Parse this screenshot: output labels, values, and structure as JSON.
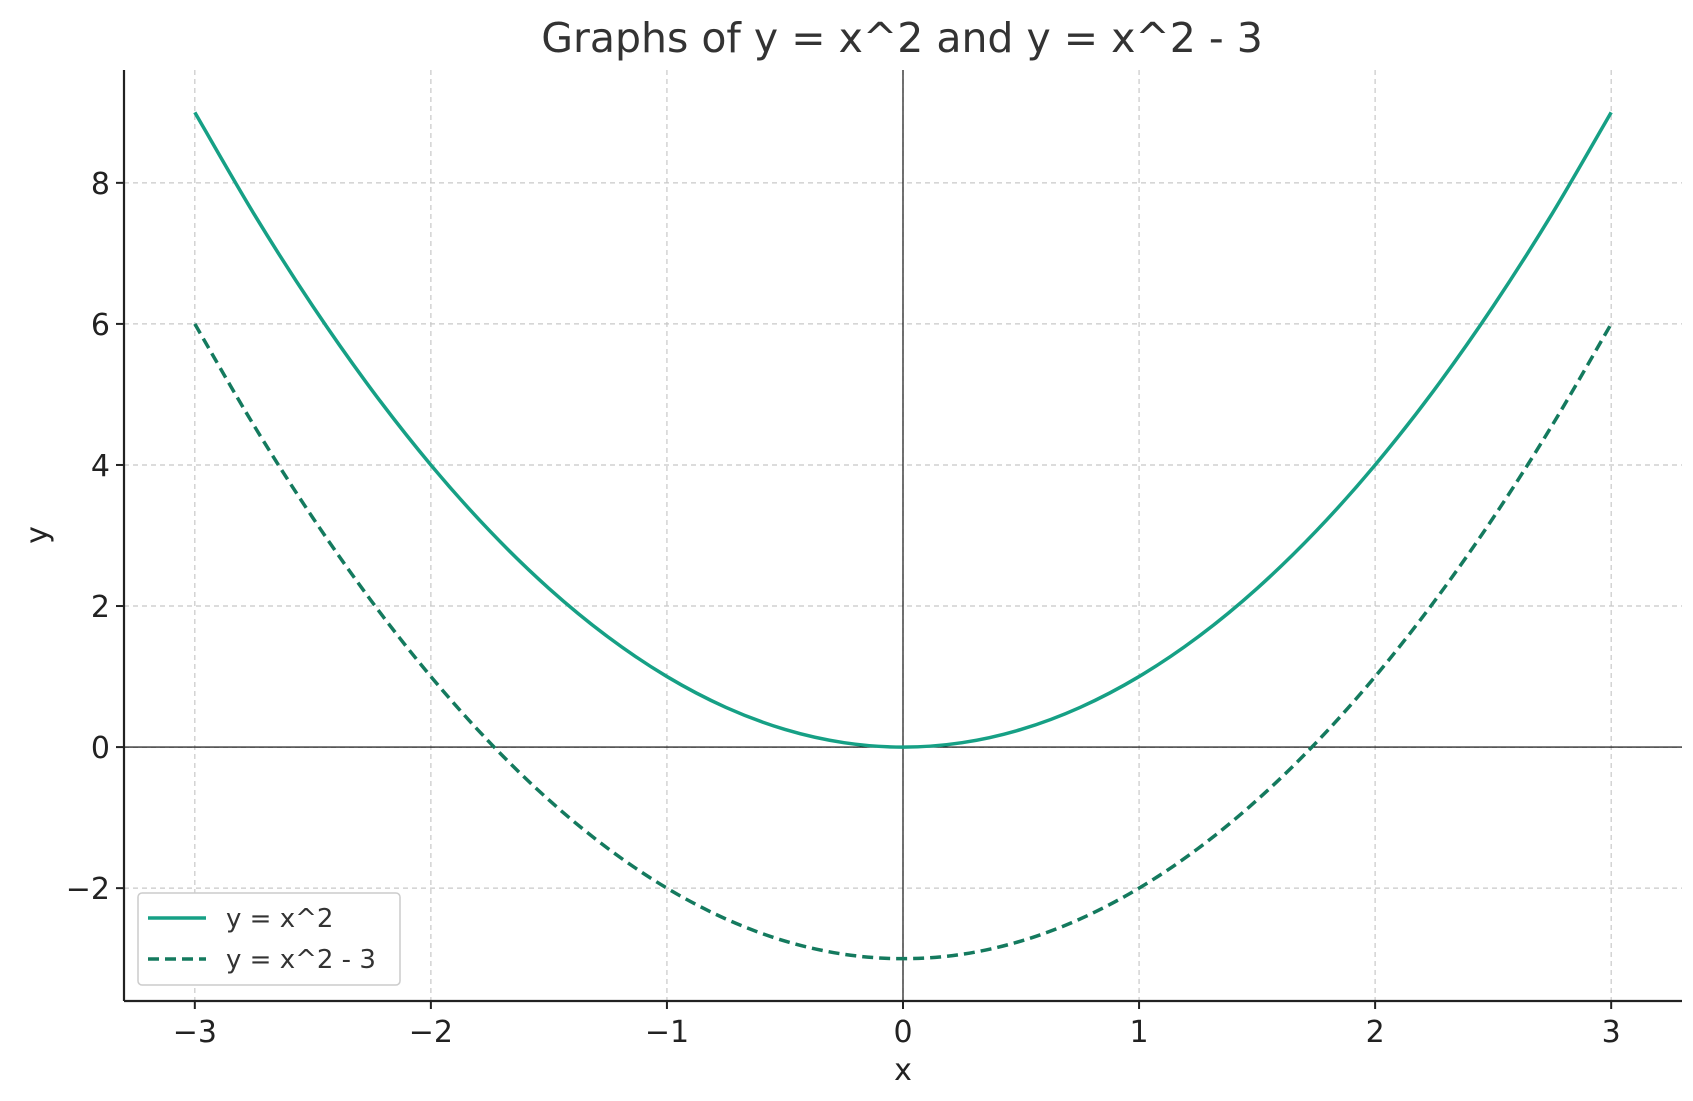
{
  "chart_data": {
    "type": "line",
    "title": "Graphs of y = x^2 and y = x^2 - 3",
    "xlabel": "x",
    "ylabel": "y",
    "xlim": [
      -3.3,
      3.3
    ],
    "ylim": [
      -3.6,
      9.6
    ],
    "xticks": [
      -3,
      -2,
      -1,
      0,
      1,
      2,
      3
    ],
    "xtick_labels": [
      "−3",
      "−2",
      "−1",
      "0",
      "1",
      "2",
      "3"
    ],
    "yticks": [
      -2,
      0,
      2,
      4,
      6,
      8
    ],
    "ytick_labels": [
      "−2",
      "0",
      "2",
      "4",
      "6",
      "8"
    ],
    "grid": true,
    "legend_position": "lower-left",
    "x": [
      -3.0,
      -2.75,
      -2.5,
      -2.25,
      -2.0,
      -1.75,
      -1.5,
      -1.25,
      -1.0,
      -0.75,
      -0.5,
      -0.25,
      0.0,
      0.25,
      0.5,
      0.75,
      1.0,
      1.25,
      1.5,
      1.75,
      2.0,
      2.25,
      2.5,
      2.75,
      3.0
    ],
    "series": [
      {
        "name": "y = x^2",
        "color": "#16a085",
        "style": "solid",
        "values": [
          9.0,
          7.5625,
          6.25,
          5.0625,
          4.0,
          3.0625,
          2.25,
          1.5625,
          1.0,
          0.5625,
          0.25,
          0.0625,
          0.0,
          0.0625,
          0.25,
          0.5625,
          1.0,
          1.5625,
          2.25,
          3.0625,
          4.0,
          5.0625,
          6.25,
          7.5625,
          9.0
        ]
      },
      {
        "name": "y = x^2 - 3",
        "color": "#147a5e",
        "style": "dashed",
        "values": [
          6.0,
          4.5625,
          3.25,
          2.0625,
          1.0,
          0.0625,
          -0.75,
          -1.4375,
          -2.0,
          -2.4375,
          -2.75,
          -2.9375,
          -3.0,
          -2.9375,
          -2.75,
          -2.4375,
          -2.0,
          -1.4375,
          -0.75,
          0.0625,
          1.0,
          2.0625,
          3.25,
          4.5625,
          6.0
        ]
      }
    ]
  }
}
